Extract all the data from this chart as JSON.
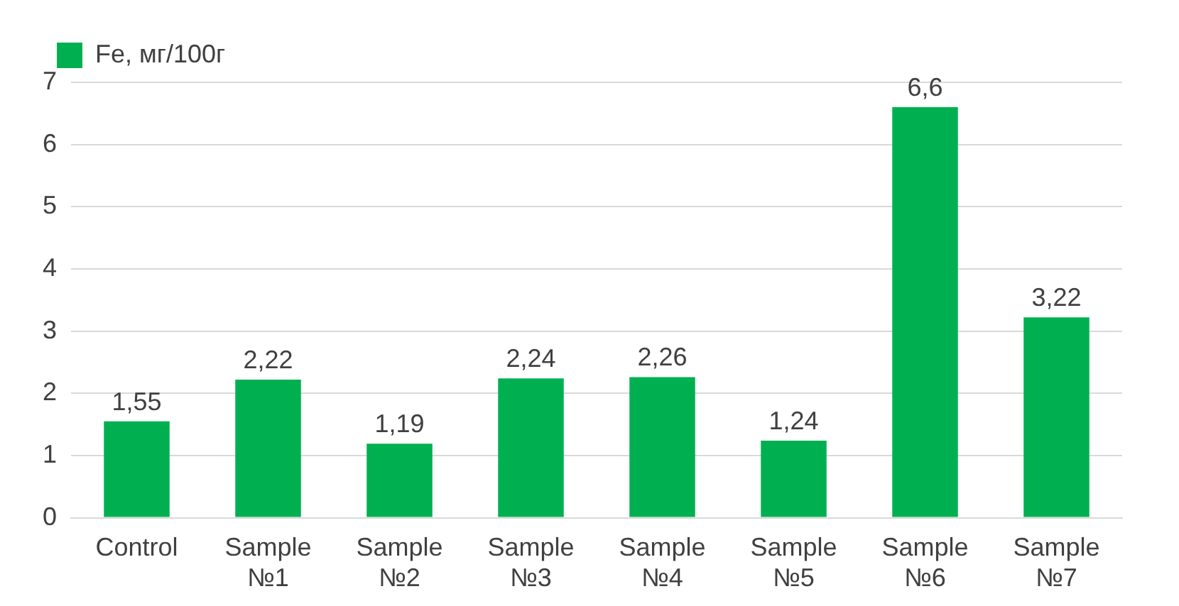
{
  "chart_data": {
    "type": "bar",
    "categories": [
      "Control",
      "Sample №1",
      "Sample №2",
      "Sample №3",
      "Sample №4",
      "Sample №5",
      "Sample №6",
      "Sample №7"
    ],
    "series": [
      {
        "name": "Fe, мг/100г",
        "color": "#00b050",
        "values": [
          1.55,
          2.22,
          1.19,
          2.24,
          2.26,
          1.24,
          6.6,
          3.22
        ],
        "value_labels": [
          "1,55",
          "2,22",
          "1,19",
          "2,24",
          "2,26",
          "1,24",
          "6,6",
          "3,22"
        ]
      }
    ],
    "ylim": [
      0,
      7
    ],
    "yticks": [
      0,
      1,
      2,
      3,
      4,
      5,
      6,
      7
    ],
    "grid": "y",
    "legend": "top left"
  }
}
